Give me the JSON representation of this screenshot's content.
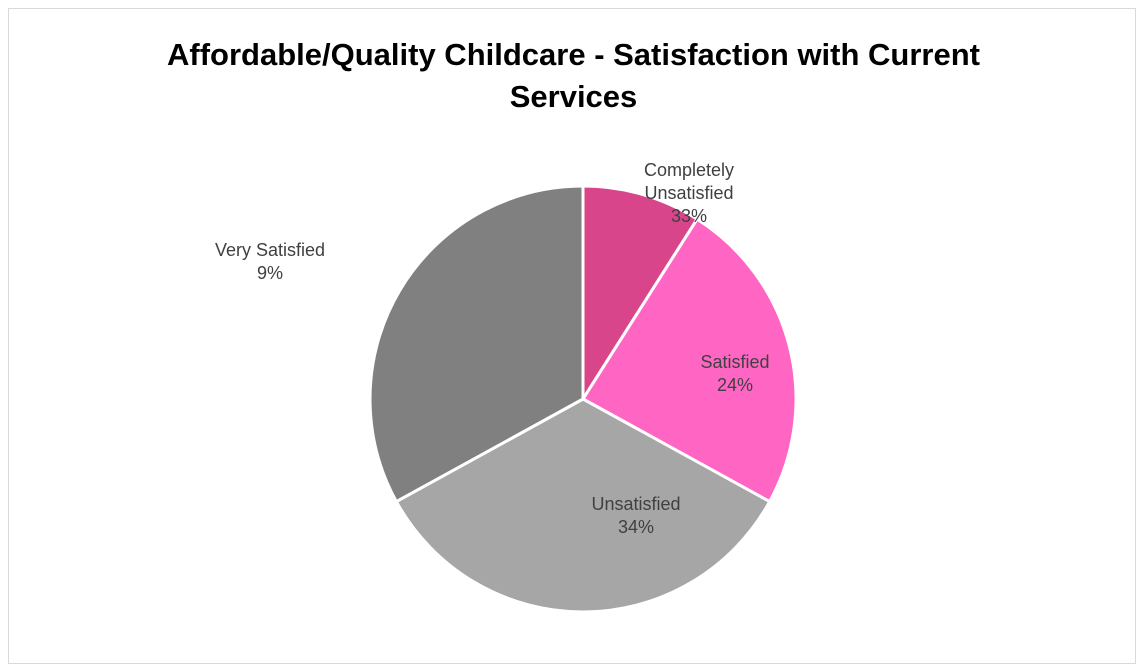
{
  "chart_data": {
    "type": "pie",
    "title_lines": [
      "Affordable/Quality Childcare - Satisfaction with Current",
      "Services"
    ],
    "categories": [
      "Very Satisfied",
      "Satisfied",
      "Unsatisfied",
      "Completely Unsatisfied"
    ],
    "values": [
      9,
      24,
      34,
      33
    ],
    "slice_colors": [
      "#d9458a",
      "#ff66c4",
      "#a6a6a6",
      "#808080"
    ],
    "data_labels": [
      {
        "lines": [
          "Completely",
          "Unsatisfied",
          "33%"
        ]
      },
      {
        "lines": [
          "Satisfied",
          "24%"
        ]
      },
      {
        "lines": [
          "Unsatisfied",
          "34%"
        ]
      },
      {
        "lines": [
          "Very Satisfied",
          "9%"
        ]
      }
    ],
    "start_angle_deg": 0,
    "direction": "clockwise",
    "legend": "none"
  }
}
